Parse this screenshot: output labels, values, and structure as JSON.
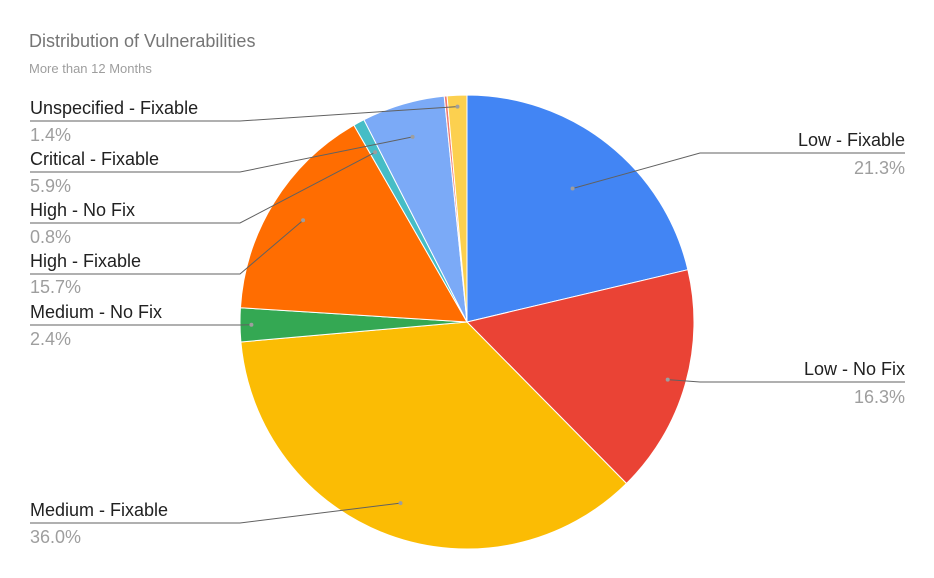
{
  "chart_data": {
    "type": "pie",
    "title": "Distribution of Vulnerabilities",
    "subtitle": "More than 12 Months",
    "slices": [
      {
        "label": "Low - Fixable",
        "value": 21.3,
        "display": "21.3%",
        "color": "#4285f4"
      },
      {
        "label": "Low - No Fix",
        "value": 16.3,
        "display": "16.3%",
        "color": "#ea4335"
      },
      {
        "label": "Medium - Fixable",
        "value": 36.0,
        "display": "36.0%",
        "color": "#fbbc04"
      },
      {
        "label": "Medium - No Fix",
        "value": 2.4,
        "display": "2.4%",
        "color": "#34a853"
      },
      {
        "label": "High - Fixable",
        "value": 15.7,
        "display": "15.7%",
        "color": "#ff6d01"
      },
      {
        "label": "High - No Fix",
        "value": 0.8,
        "display": "0.8%",
        "color": "#46bdc6"
      },
      {
        "label": "Critical - Fixable",
        "value": 5.9,
        "display": "5.9%",
        "color": "#7baaf7"
      },
      {
        "label": "",
        "value": 0.2,
        "display": "",
        "color": "#f07b72"
      },
      {
        "label": "Unspecified - Fixable",
        "value": 1.4,
        "display": "1.4%",
        "color": "#fcd04f"
      }
    ]
  }
}
